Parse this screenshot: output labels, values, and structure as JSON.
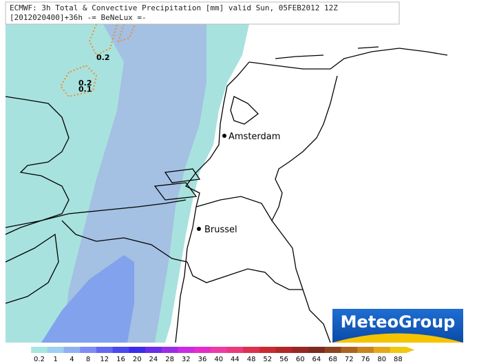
{
  "header": {
    "title": "ECMWF: 3h Total & Convective Precipitation [mm] valid Sun, 05FEB2012 12Z",
    "subtitle": "[2012020400]+36h -= BeNeLux =-"
  },
  "cities": [
    {
      "name": "Amsterdam"
    },
    {
      "name": "Brussel"
    }
  ],
  "contour_labels": [
    "0.2",
    "0.2",
    "0.1"
  ],
  "logo": "MeteoGroup",
  "legend": {
    "labels": [
      0.2,
      1,
      4,
      8,
      12,
      16,
      20,
      24,
      28,
      32,
      36,
      40,
      44,
      48,
      52,
      56,
      60,
      64,
      68,
      72,
      76,
      80,
      88
    ],
    "colors": [
      "#a6e6e0",
      "#9ed0f0",
      "#90b0f4",
      "#7e8cf6",
      "#6468f2",
      "#4a48ee",
      "#3c2ce8",
      "#6a2ce6",
      "#9a2ce4",
      "#c82ce0",
      "#e42cc8",
      "#ea3ca4",
      "#e83a7c",
      "#dc3050",
      "#c82c32",
      "#b02828",
      "#962824",
      "#7e2a20",
      "#8c4420",
      "#aa6420",
      "#c88420",
      "#e4a818",
      "#f0c810"
    ]
  }
}
